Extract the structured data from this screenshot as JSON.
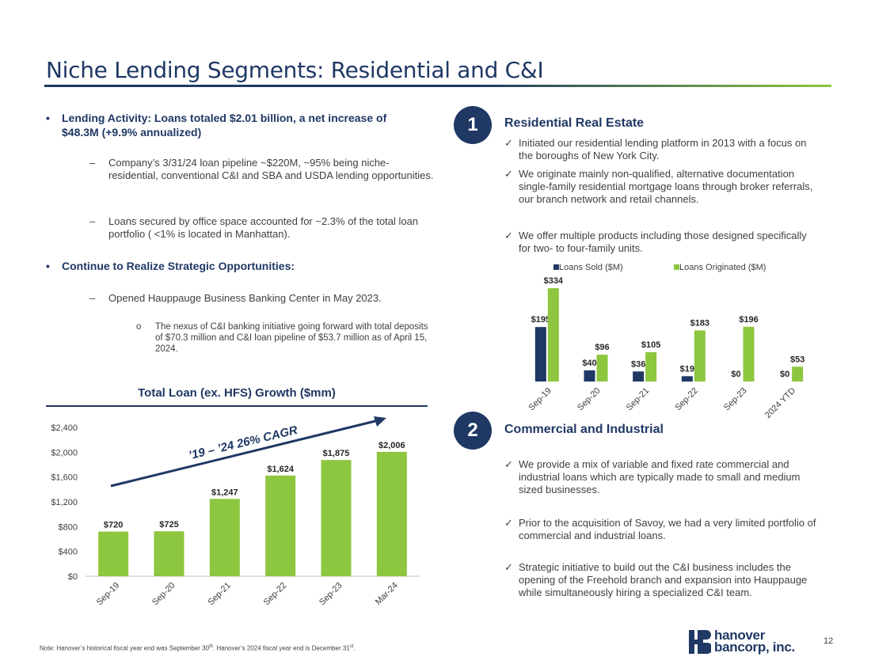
{
  "title": "Niche Lending Segments: Residential and C&I",
  "left": {
    "bullet1": "Lending Activity: Loans totaled $2.01 billion, a net increase of $48.3M (+9.9% annualized)",
    "sub1": "Company’s 3/31/24 loan pipeline ~$220M, ~95% being niche-residential, conventional C&I and SBA and USDA lending opportunities.",
    "sub2": "Loans secured by office space accounted for ~2.3% of the total loan portfolio ( <1% is located in Manhattan).",
    "bullet2": "Continue to Realize Strategic Opportunities:",
    "sub3": "Opened Hauppauge Business Banking Center in May 2023.",
    "subsub1": "The nexus of C&I banking initiative going forward with total deposits of $70.3 million and C&I loan pipeline of $53.7 million as of April 15, 2024.",
    "bullet_glyph": "•",
    "dash_glyph": "–",
    "circle_glyph": "o"
  },
  "loan_chart_title": "Total Loan (ex. HFS) Growth ($mm)",
  "cagr_label": "’19 – ’24 26% CAGR",
  "chart_data": [
    {
      "type": "bar",
      "title": "Total Loan (ex. HFS) Growth ($mm)",
      "categories": [
        "Sep-19",
        "Sep-20",
        "Sep-21",
        "Sep-22",
        "Sep-23",
        "Mar-24"
      ],
      "values": [
        720,
        725,
        1247,
        1624,
        1875,
        2006
      ],
      "data_labels": [
        "$720",
        "$725",
        "$1,247",
        "$1,624",
        "$1,875",
        "$2,006"
      ],
      "ylim": [
        0,
        2400
      ],
      "yticks": [
        0,
        400,
        800,
        1200,
        1600,
        2000,
        2400
      ],
      "ytick_labels": [
        "$0",
        "$400",
        "$800",
        "$1,200",
        "$1,600",
        "$2,000",
        "$2,400"
      ],
      "color": "#8dc63f",
      "grid": false
    },
    {
      "type": "bar",
      "categories": [
        "Sep-19",
        "Sep-20",
        "Sep-21",
        "Sep-22",
        "Sep-23",
        "2024 YTD"
      ],
      "series": [
        {
          "name": "Loans Sold ($M)",
          "values": [
            195,
            40,
            36,
            19,
            0,
            0
          ],
          "labels": [
            "$195",
            "$40",
            "$36",
            "$19",
            "$0",
            "$0"
          ],
          "color": "#1f3864"
        },
        {
          "name": "Loans Originated ($M)",
          "values": [
            334,
            96,
            105,
            183,
            196,
            53
          ],
          "labels": [
            "$334",
            "$96",
            "$105",
            "$183",
            "$196",
            "$53"
          ],
          "color": "#8dc63f"
        }
      ],
      "ylim": [
        0,
        340
      ],
      "legend": "top",
      "grid": false
    }
  ],
  "section1": {
    "number": "1",
    "title": "Residential Real Estate",
    "items": [
      "Initiated our residential lending platform in 2013 with a focus on the boroughs of New York City.",
      "We originate mainly non-qualified, alternative documentation single-family residential mortgage loans through broker referrals, our branch network and retail channels.",
      "We offer multiple products including those designed specifically for two- to four-family units."
    ]
  },
  "section2": {
    "number": "2",
    "title": "Commercial and Industrial",
    "items": [
      "We provide a mix of variable and fixed rate commercial and industrial loans which are typically made to small and medium sized businesses.",
      "Prior to the acquisition of Savoy, we had a very limited portfolio of commercial and industrial loans.",
      "Strategic initiative to build out the C&I business includes the opening of the Freehold branch and expansion into Hauppauge while simultaneously hiring a specialized C&I team."
    ]
  },
  "check_glyph": "✓",
  "footnote": {
    "part1": "Note: Hanover’s historical fiscal year end was September 30",
    "sup1": "th",
    "part2": ". Hanover’s 2024 fiscal year end is December 31",
    "sup2": "st",
    "part3": "."
  },
  "logo": {
    "line1": "hanover",
    "line2": "bancorp, inc."
  },
  "page_number": "12",
  "colors": {
    "navy": "#1f3864",
    "green": "#8dc63f"
  }
}
